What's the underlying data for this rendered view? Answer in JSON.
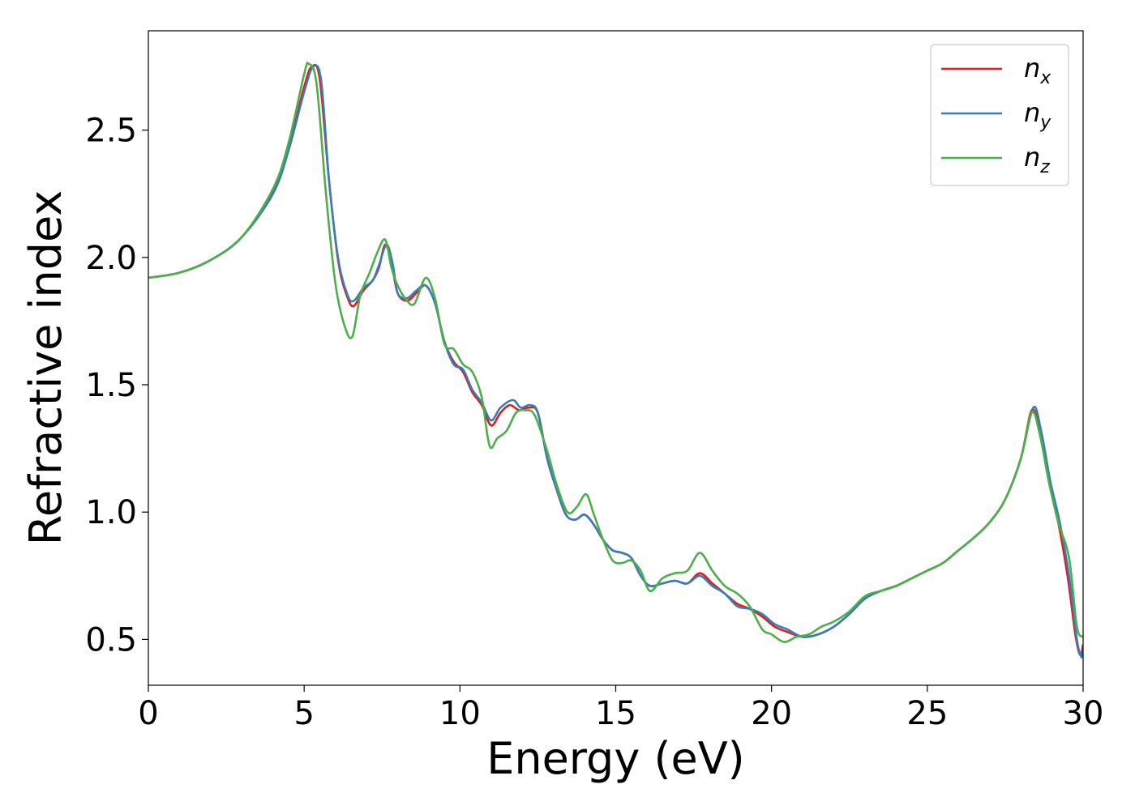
{
  "chart_data": {
    "type": "line",
    "title": "",
    "xlabel": "Energy (eV)",
    "ylabel": "Refractive index",
    "xlim": [
      0,
      30
    ],
    "ylim": [
      0.32,
      2.89
    ],
    "xticks": [
      0,
      5,
      10,
      15,
      20,
      25,
      30
    ],
    "xtick_labels": [
      "0",
      "5",
      "10",
      "15",
      "20",
      "25",
      "30"
    ],
    "yticks": [
      0.5,
      1.0,
      1.5,
      2.0,
      2.5
    ],
    "ytick_labels": [
      "0.5",
      "1.0",
      "1.5",
      "2.0",
      "2.5"
    ],
    "grid": false,
    "legend_position": "top-right",
    "series": [
      {
        "name": "n_x",
        "label_main": "n",
        "label_sub": "x",
        "color": "#e41a1c",
        "x": [
          0,
          1,
          2,
          3,
          4,
          4.5,
          5,
          5.25,
          5.5,
          5.8,
          6.1,
          6.4,
          6.6,
          6.9,
          7.2,
          7.4,
          7.6,
          7.8,
          8.0,
          8.3,
          8.6,
          8.9,
          9.2,
          9.5,
          9.8,
          10.1,
          10.4,
          10.7,
          11.0,
          11.3,
          11.6,
          11.9,
          12.2,
          12.5,
          12.8,
          13.1,
          13.4,
          13.7,
          14.0,
          14.3,
          14.6,
          14.9,
          15.2,
          15.5,
          15.8,
          16.1,
          16.5,
          16.9,
          17.3,
          17.7,
          18.1,
          18.5,
          18.9,
          19.3,
          19.7,
          20.1,
          20.5,
          21.0,
          21.5,
          22.0,
          22.5,
          23.0,
          23.5,
          24.0,
          24.5,
          25.0,
          25.5,
          26.0,
          26.5,
          27.0,
          27.5,
          28.0,
          28.35,
          28.6,
          28.9,
          29.2,
          29.5,
          29.75,
          29.9,
          30
        ],
        "y": [
          1.92,
          1.94,
          1.99,
          2.08,
          2.26,
          2.43,
          2.67,
          2.75,
          2.7,
          2.3,
          1.98,
          1.84,
          1.81,
          1.87,
          1.91,
          1.96,
          2.05,
          1.98,
          1.86,
          1.83,
          1.86,
          1.89,
          1.82,
          1.67,
          1.59,
          1.55,
          1.47,
          1.42,
          1.34,
          1.39,
          1.42,
          1.4,
          1.41,
          1.39,
          1.21,
          1.09,
          0.99,
          0.97,
          0.99,
          0.95,
          0.89,
          0.85,
          0.84,
          0.82,
          0.75,
          0.71,
          0.72,
          0.73,
          0.72,
          0.76,
          0.72,
          0.68,
          0.64,
          0.62,
          0.59,
          0.55,
          0.53,
          0.51,
          0.52,
          0.55,
          0.6,
          0.66,
          0.69,
          0.71,
          0.74,
          0.77,
          0.8,
          0.85,
          0.9,
          0.96,
          1.05,
          1.21,
          1.4,
          1.32,
          1.12,
          0.96,
          0.75,
          0.52,
          0.44,
          0.48
        ]
      },
      {
        "name": "n_y",
        "label_main": "n",
        "label_sub": "y",
        "color": "#377eb8",
        "x": [
          0,
          1,
          2,
          3,
          4,
          4.5,
          5,
          5.3,
          5.55,
          5.8,
          6.1,
          6.4,
          6.6,
          6.9,
          7.2,
          7.4,
          7.65,
          7.85,
          8.0,
          8.3,
          8.6,
          8.9,
          9.2,
          9.5,
          9.8,
          10.1,
          10.4,
          10.7,
          11.0,
          11.3,
          11.7,
          11.95,
          12.25,
          12.5,
          12.8,
          13.1,
          13.4,
          13.7,
          14.0,
          14.3,
          14.6,
          14.9,
          15.2,
          15.5,
          15.8,
          16.1,
          16.5,
          16.9,
          17.3,
          17.7,
          18.1,
          18.5,
          18.9,
          19.3,
          19.7,
          20.1,
          20.5,
          21.0,
          21.5,
          22.0,
          22.5,
          23.0,
          23.5,
          24.0,
          24.5,
          25.0,
          25.5,
          26.0,
          26.5,
          27.0,
          27.5,
          28.0,
          28.4,
          28.65,
          28.95,
          29.25,
          29.55,
          29.8,
          29.95,
          30
        ],
        "y": [
          1.92,
          1.94,
          1.99,
          2.08,
          2.25,
          2.42,
          2.65,
          2.75,
          2.69,
          2.3,
          1.99,
          1.85,
          1.83,
          1.88,
          1.91,
          1.97,
          2.05,
          1.97,
          1.86,
          1.84,
          1.87,
          1.89,
          1.82,
          1.67,
          1.58,
          1.56,
          1.48,
          1.43,
          1.36,
          1.41,
          1.44,
          1.41,
          1.42,
          1.39,
          1.21,
          1.09,
          0.99,
          0.97,
          0.99,
          0.95,
          0.89,
          0.85,
          0.84,
          0.82,
          0.75,
          0.71,
          0.72,
          0.73,
          0.72,
          0.75,
          0.71,
          0.68,
          0.63,
          0.62,
          0.6,
          0.56,
          0.54,
          0.51,
          0.52,
          0.55,
          0.6,
          0.66,
          0.69,
          0.71,
          0.74,
          0.77,
          0.8,
          0.85,
          0.9,
          0.96,
          1.05,
          1.21,
          1.41,
          1.32,
          1.12,
          0.96,
          0.75,
          0.5,
          0.43,
          0.47
        ]
      },
      {
        "name": "n_z",
        "label_main": "n",
        "label_sub": "z",
        "color": "#4daf4a",
        "x": [
          0,
          1,
          2,
          3,
          4,
          4.5,
          5,
          5.15,
          5.4,
          5.7,
          6.0,
          6.3,
          6.55,
          6.8,
          7.1,
          7.35,
          7.6,
          7.8,
          8.0,
          8.3,
          8.55,
          8.9,
          9.2,
          9.5,
          9.8,
          10.1,
          10.4,
          10.7,
          10.95,
          11.2,
          11.5,
          11.8,
          12.1,
          12.4,
          12.8,
          13.1,
          13.45,
          13.75,
          14.05,
          14.3,
          14.6,
          14.9,
          15.2,
          15.5,
          15.8,
          16.1,
          16.5,
          16.9,
          17.3,
          17.7,
          18.1,
          18.5,
          18.9,
          19.3,
          19.7,
          20.0,
          20.4,
          20.8,
          21.2,
          21.6,
          22.0,
          22.5,
          23.0,
          23.5,
          24.0,
          24.5,
          25.0,
          25.5,
          26.0,
          26.5,
          27.0,
          27.5,
          28.0,
          28.35,
          28.6,
          28.9,
          29.2,
          29.55,
          29.8,
          30
        ],
        "y": [
          1.92,
          1.94,
          1.99,
          2.08,
          2.27,
          2.45,
          2.72,
          2.76,
          2.68,
          2.25,
          1.9,
          1.73,
          1.69,
          1.85,
          1.94,
          2.02,
          2.07,
          1.96,
          1.89,
          1.83,
          1.82,
          1.92,
          1.84,
          1.66,
          1.64,
          1.58,
          1.55,
          1.45,
          1.26,
          1.29,
          1.32,
          1.39,
          1.4,
          1.38,
          1.24,
          1.11,
          1.0,
          1.02,
          1.07,
          0.99,
          0.89,
          0.81,
          0.8,
          0.81,
          0.77,
          0.69,
          0.74,
          0.76,
          0.77,
          0.84,
          0.77,
          0.71,
          0.68,
          0.63,
          0.54,
          0.52,
          0.49,
          0.51,
          0.52,
          0.55,
          0.57,
          0.61,
          0.67,
          0.69,
          0.71,
          0.74,
          0.77,
          0.8,
          0.85,
          0.9,
          0.96,
          1.05,
          1.21,
          1.39,
          1.31,
          1.12,
          0.96,
          0.82,
          0.55,
          0.51
        ]
      }
    ]
  }
}
